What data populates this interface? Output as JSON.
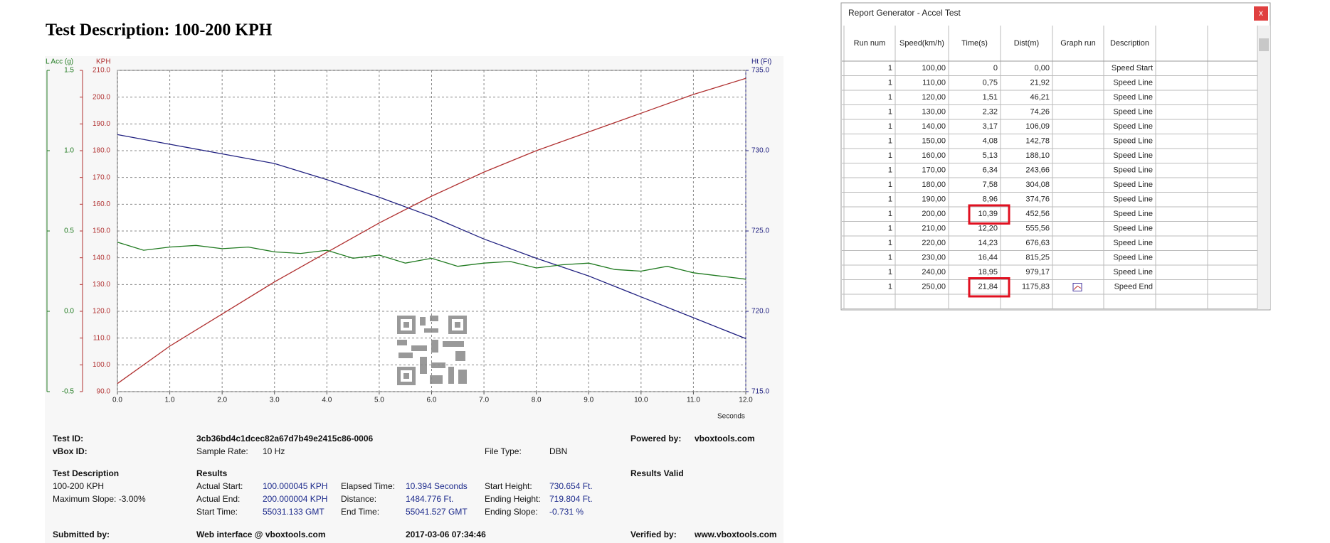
{
  "chart_data": {
    "type": "line",
    "title": "Test Description: 100-200 KPH",
    "xlabel": "Seconds",
    "ylabel": "KPH",
    "y2label": "Ht (Ft)",
    "y3label": "L Acc (g)",
    "xlim": [
      0,
      12
    ],
    "xticks": [
      {
        "value": 0,
        "label": "0.0"
      },
      {
        "value": 1,
        "label": "1.0"
      },
      {
        "value": 2,
        "label": "2.0"
      },
      {
        "value": 3,
        "label": "3.0"
      },
      {
        "value": 4,
        "label": "4.0"
      },
      {
        "value": 5,
        "label": "5.0"
      },
      {
        "value": 6,
        "label": "6.0"
      },
      {
        "value": 7,
        "label": "7.0"
      },
      {
        "value": 8,
        "label": "8.0"
      },
      {
        "value": 9,
        "label": "9.0"
      },
      {
        "value": 10,
        "label": "10.0"
      },
      {
        "value": 11,
        "label": "11.0"
      },
      {
        "value": 12,
        "label": "12.0"
      }
    ],
    "ylim": [
      90,
      210
    ],
    "yticks": [
      {
        "value": 90,
        "label": "90.0"
      },
      {
        "value": 100,
        "label": "100.0"
      },
      {
        "value": 110,
        "label": "110.0"
      },
      {
        "value": 120,
        "label": "120.0"
      },
      {
        "value": 130,
        "label": "130.0"
      },
      {
        "value": 140,
        "label": "140.0"
      },
      {
        "value": 150,
        "label": "150.0"
      },
      {
        "value": 160,
        "label": "160.0"
      },
      {
        "value": 170,
        "label": "170.0"
      },
      {
        "value": 180,
        "label": "180.0"
      },
      {
        "value": 190,
        "label": "190.0"
      },
      {
        "value": 200,
        "label": "200.0"
      },
      {
        "value": 210,
        "label": "210.0"
      }
    ],
    "y2lim": [
      715,
      735
    ],
    "y2ticks": [
      {
        "value": 715,
        "label": "715.0"
      },
      {
        "value": 720,
        "label": "720.0"
      },
      {
        "value": 725,
        "label": "725.0"
      },
      {
        "value": 730,
        "label": "730.0"
      },
      {
        "value": 735,
        "label": "735.0"
      }
    ],
    "y3lim": [
      -0.5,
      1.5
    ],
    "y3ticks": [
      -0.5,
      {
        "value": 0,
        "label": "0.0"
      },
      0.5,
      {
        "value": 1,
        "label": "1.0"
      },
      1.5
    ],
    "grid": true,
    "series": [
      {
        "color": "#b03030",
        "axis": "y",
        "x": [
          0,
          1,
          2,
          3,
          4,
          5,
          6,
          7,
          8,
          9,
          10,
          11,
          12
        ],
        "values": [
          93,
          107,
          119,
          131,
          142,
          153,
          163,
          172,
          180,
          187,
          194,
          201,
          207
        ]
      },
      {
        "color": "#202080",
        "axis": "y2",
        "x": [
          0,
          1,
          2,
          3,
          4,
          5,
          6,
          7,
          8,
          9,
          10,
          11,
          12
        ],
        "values": [
          731.0,
          730.4,
          729.8,
          729.2,
          728.2,
          727.1,
          725.9,
          724.5,
          723.3,
          722.2,
          720.9,
          719.6,
          718.3
        ]
      },
      {
        "color": "#207a20",
        "axis": "y3",
        "x": [
          0,
          0.5,
          1,
          1.5,
          2,
          2.5,
          3,
          3.5,
          4,
          4.5,
          5,
          5.5,
          6,
          6.5,
          7,
          7.5,
          8,
          8.5,
          9,
          9.5,
          10,
          10.5,
          11,
          11.5,
          12
        ],
        "values": [
          0.43,
          0.38,
          0.4,
          0.41,
          0.39,
          0.4,
          0.37,
          0.36,
          0.38,
          0.33,
          0.35,
          0.3,
          0.33,
          0.28,
          0.3,
          0.31,
          0.27,
          0.29,
          0.3,
          0.26,
          0.25,
          0.28,
          0.24,
          0.22,
          0.2
        ]
      }
    ]
  },
  "report": {
    "test_id": {
      "label": "Test ID:",
      "value": "3cb36bd4c1dcec82a67d7b49e2415c86-0006"
    },
    "vbox_id": {
      "label": "vBox ID:"
    },
    "sample_rate": {
      "label": "Sample Rate:",
      "value": "10 Hz"
    },
    "file_type": {
      "label": "File Type:",
      "value": "DBN"
    },
    "powered_by": {
      "label": "Powered by:",
      "value": "vboxtools.com"
    },
    "test_description": {
      "heading": "Test Description",
      "name": "100-200 KPH",
      "max_slope": "Maximum Slope: -3.00%"
    },
    "results": {
      "heading": "Results",
      "status": "Results Valid",
      "fields": [
        {
          "label": "Actual Start:",
          "value": "100.000045 KPH"
        },
        {
          "label": "Elapsed Time:",
          "value": "10.394 Seconds"
        },
        {
          "label": "Start Height:",
          "value": "730.654 Ft."
        },
        {
          "label": "Actual End:",
          "value": "200.000004 KPH"
        },
        {
          "label": "Distance:",
          "value": "1484.776 Ft."
        },
        {
          "label": "Ending Height:",
          "value": "719.804 Ft."
        },
        {
          "label": "Start Time:",
          "value": "55031.133 GMT"
        },
        {
          "label": "End Time:",
          "value": "55041.527 GMT"
        },
        {
          "label": "Ending Slope:",
          "value": "-0.731 %"
        }
      ]
    },
    "submitted_by": {
      "label": "Submitted by:",
      "value": "Web interface @ vboxtools.com"
    },
    "timestamp": "2017-03-06 07:34:46",
    "verified_by": {
      "label": "Verified by:",
      "value": "www.vboxtools.com"
    }
  },
  "table": {
    "title": "Report Generator - Accel Test",
    "close": "x",
    "columns": [
      "Run num",
      "Speed(km/h)",
      "Time(s)",
      "Dist(m)",
      "Graph run",
      "Description"
    ],
    "rows": [
      {
        "run": "1",
        "speed": "100,00",
        "time": "0",
        "dist": "0,00",
        "description": "Speed Start"
      },
      {
        "run": "1",
        "speed": "110,00",
        "time": "0,75",
        "dist": "21,92",
        "description": "Speed Line"
      },
      {
        "run": "1",
        "speed": "120,00",
        "time": "1,51",
        "dist": "46,21",
        "description": "Speed Line"
      },
      {
        "run": "1",
        "speed": "130,00",
        "time": "2,32",
        "dist": "74,26",
        "description": "Speed Line"
      },
      {
        "run": "1",
        "speed": "140,00",
        "time": "3,17",
        "dist": "106,09",
        "description": "Speed Line"
      },
      {
        "run": "1",
        "speed": "150,00",
        "time": "4,08",
        "dist": "142,78",
        "description": "Speed Line"
      },
      {
        "run": "1",
        "speed": "160,00",
        "time": "5,13",
        "dist": "188,10",
        "description": "Speed Line"
      },
      {
        "run": "1",
        "speed": "170,00",
        "time": "6,34",
        "dist": "243,66",
        "description": "Speed Line"
      },
      {
        "run": "1",
        "speed": "180,00",
        "time": "7,58",
        "dist": "304,08",
        "description": "Speed Line"
      },
      {
        "run": "1",
        "speed": "190,00",
        "time": "8,96",
        "dist": "374,76",
        "description": "Speed Line"
      },
      {
        "run": "1",
        "speed": "200,00",
        "time": "10,39",
        "dist": "452,56",
        "description": "Speed Line"
      },
      {
        "run": "1",
        "speed": "210,00",
        "time": "12,20",
        "dist": "555,56",
        "description": "Speed Line"
      },
      {
        "run": "1",
        "speed": "220,00",
        "time": "14,23",
        "dist": "676,63",
        "description": "Speed Line"
      },
      {
        "run": "1",
        "speed": "230,00",
        "time": "16,44",
        "dist": "815,25",
        "description": "Speed Line"
      },
      {
        "run": "1",
        "speed": "240,00",
        "time": "18,95",
        "dist": "979,17",
        "description": "Speed Line"
      },
      {
        "run": "1",
        "speed": "250,00",
        "time": "21,84",
        "dist": "1175,83",
        "description": "Speed End"
      }
    ]
  }
}
